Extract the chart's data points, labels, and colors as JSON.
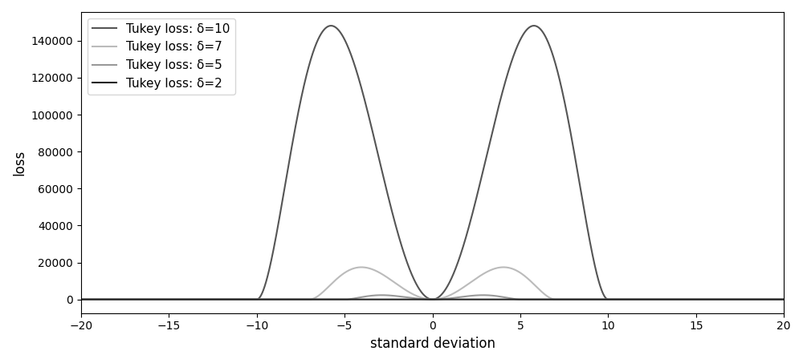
{
  "title": "",
  "xlabel": "standard deviation",
  "ylabel": "loss",
  "xlim": [
    -20,
    20
  ],
  "x_ticks": [
    -20,
    -15,
    -10,
    -5,
    0,
    5,
    10,
    15,
    20
  ],
  "deltas": [
    10,
    7,
    5,
    2
  ],
  "colors": [
    "#555555",
    "#bbbbbb",
    "#999999",
    "#222222"
  ],
  "linewidths": [
    1.5,
    1.5,
    1.5,
    1.5
  ],
  "legend_labels": [
    "Tukey loss: δ=10",
    "Tukey loss: δ=7",
    "Tukey loss: δ=5",
    "Tukey loss: δ=2"
  ],
  "figsize": [
    10.0,
    4.53
  ],
  "dpi": 100
}
